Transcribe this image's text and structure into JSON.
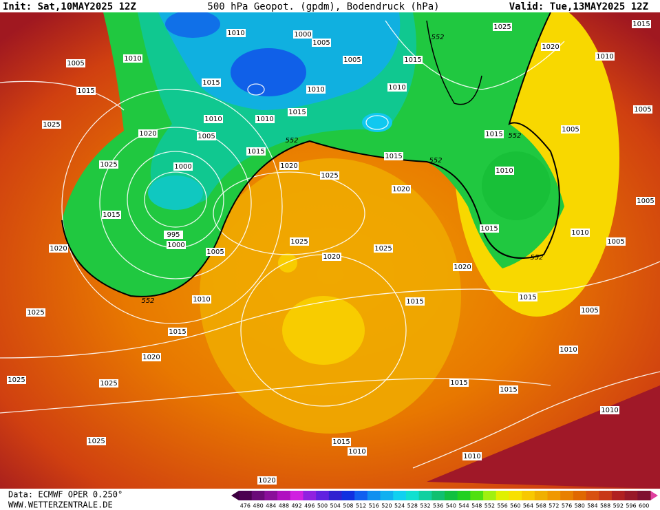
{
  "header": {
    "init": "Init: Sat,10MAY2025 12Z",
    "title": "500 hPa Geopot. (gpdm), Bodendruck (hPa)",
    "valid": "Valid: Tue,13MAY2025 12Z"
  },
  "footer": {
    "source": "Data: ECMWF OPER 0.250°",
    "website": "WWW.WETTERZENTRALE.DE"
  },
  "isobar_labels": [
    "1005",
    "1010",
    "1015",
    "1025",
    "1020",
    "1025",
    "1015",
    "1020",
    "1000",
    "995",
    "1000",
    "1005",
    "1010",
    "1025",
    "1015",
    "1020",
    "1025",
    "1025",
    "1025",
    "1020",
    "1010",
    "1000",
    "1005",
    "1005",
    "1010",
    "1015",
    "1010",
    "1005",
    "1010",
    "1015",
    "1015",
    "1020",
    "1025",
    "1015",
    "1020",
    "1025",
    "1020",
    "1025",
    "1010",
    "1015",
    "1025",
    "1020",
    "1010",
    "1015",
    "1005",
    "1005",
    "1015",
    "1010",
    "1015",
    "1010",
    "1005",
    "1005",
    "1020",
    "1015",
    "1015",
    "1005",
    "1010",
    "1015",
    "1015",
    "1010",
    "1015",
    "1010",
    "1010"
  ],
  "contour_labels": [
    "552",
    "552",
    "552",
    "552",
    "552",
    "552"
  ],
  "legend": {
    "levels": [
      476,
      480,
      484,
      488,
      492,
      496,
      500,
      504,
      508,
      512,
      516,
      520,
      524,
      528,
      532,
      536,
      540,
      544,
      548,
      552,
      556,
      560,
      564,
      568,
      572,
      576,
      580,
      584,
      588,
      592,
      596,
      600
    ],
    "colors": [
      "#4b0050",
      "#6a0a78",
      "#8a0f9a",
      "#b010c0",
      "#d020e0",
      "#9020e0",
      "#6020e0",
      "#3020d0",
      "#1030e0",
      "#1060f0",
      "#1090f0",
      "#10b0f0",
      "#10d0f0",
      "#10e0d0",
      "#10d0a0",
      "#10c070",
      "#10c040",
      "#20d020",
      "#50e010",
      "#a0f010",
      "#e0f000",
      "#f8e000",
      "#f8c800",
      "#f0b000",
      "#f09800",
      "#e88000",
      "#e06800",
      "#d85010",
      "#c83818",
      "#b02020",
      "#981828",
      "#801030"
    ]
  }
}
